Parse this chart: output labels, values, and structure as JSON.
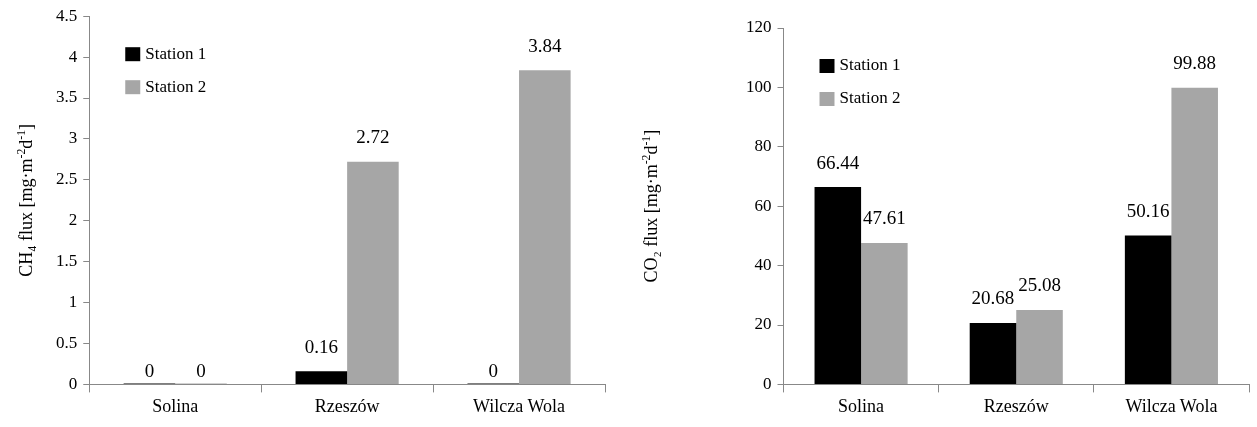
{
  "chart_data": [
    {
      "type": "bar",
      "ylabel": "CH₄ flux [mg·m$^{-2}$d$^{-1}$]",
      "categories": [
        "Solina",
        "Rzeszów",
        "Wilcza Wola"
      ],
      "series": [
        {
          "name": "Station 1",
          "color": "#000000",
          "values": [
            0,
            0.16,
            0
          ]
        },
        {
          "name": "Station 2",
          "color": "#a6a6a6",
          "values": [
            0,
            2.72,
            3.84
          ]
        }
      ],
      "ylim": [
        0,
        4.5
      ],
      "yticks": [
        0,
        0.5,
        1,
        1.5,
        2,
        2.5,
        3,
        3.5,
        4,
        4.5
      ],
      "grid": false,
      "legend": "top left",
      "data_labels": true
    },
    {
      "type": "bar",
      "ylabel": "CO₂ flux [mg·m$^{-2}$d$^{-1}$]",
      "categories": [
        "Solina",
        "Rzeszów",
        "Wilcza Wola"
      ],
      "series": [
        {
          "name": "Station 1",
          "color": "#000000",
          "values": [
            66.44,
            20.68,
            50.16
          ]
        },
        {
          "name": "Station 2",
          "color": "#a6a6a6",
          "values": [
            47.61,
            25.08,
            99.88
          ]
        }
      ],
      "ylim": [
        0,
        120
      ],
      "yticks": [
        0,
        20,
        40,
        60,
        80,
        100,
        120
      ],
      "grid": false,
      "legend": "top left",
      "data_labels": true
    }
  ]
}
